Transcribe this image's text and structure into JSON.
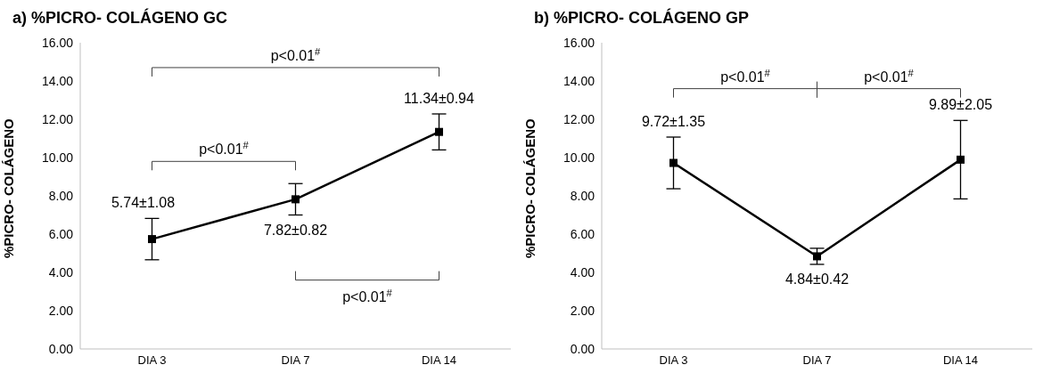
{
  "chart_data": [
    {
      "type": "line",
      "title": "a) %PICRO- COLÁGENO GC",
      "ylabel": "%PICRO- COLÁGENO",
      "categories": [
        "DIA 3",
        "DIA 7",
        "DIA 14"
      ],
      "series": [
        {
          "color": "#000000",
          "values": [
            5.74,
            7.82,
            11.34
          ],
          "errors": [
            1.08,
            0.82,
            0.94
          ],
          "value_labels": [
            "5.74±1.08",
            "7.82±0.82",
            "11.34±0.94"
          ]
        }
      ],
      "ylim": [
        0,
        16
      ],
      "yticks": [
        {
          "value": 0,
          "label": "0.00"
        },
        {
          "value": 2,
          "label": "2.00"
        },
        {
          "value": 4,
          "label": "4.00"
        },
        {
          "value": 6,
          "label": "6.00"
        },
        {
          "value": 8,
          "label": "8.00"
        },
        {
          "value": 10,
          "label": "10.00"
        },
        {
          "value": 12,
          "label": "12.00"
        },
        {
          "value": 14,
          "label": "14.00"
        },
        {
          "value": 16,
          "label": "16.00"
        }
      ],
      "marker": "square",
      "grid": false,
      "legend": false,
      "annotations": [
        "p<0.01$^{#}$",
        "p<0.01$^{#}$",
        "p<0.01$^{#}$"
      ]
    },
    {
      "type": "line",
      "title": "b) %PICRO- COLÁGENO GP",
      "ylabel": "%PICRO- COLÁGENO",
      "categories": [
        "DIA 3",
        "DIA 7",
        "DIA 14"
      ],
      "series": [
        {
          "color": "#000000",
          "values": [
            9.72,
            4.84,
            9.89
          ],
          "errors": [
            1.35,
            0.42,
            2.05
          ],
          "value_labels": [
            "9.72±1.35",
            "4.84±0.42",
            "9.89±2.05"
          ]
        }
      ],
      "ylim": [
        0,
        16
      ],
      "yticks": [
        {
          "value": 0,
          "label": "0.00"
        },
        {
          "value": 2,
          "label": "2.00"
        },
        {
          "value": 4,
          "label": "4.00"
        },
        {
          "value": 6,
          "label": "6.00"
        },
        {
          "value": 8,
          "label": "8.00"
        },
        {
          "value": 10,
          "label": "10.00"
        },
        {
          "value": 12,
          "label": "12.00"
        },
        {
          "value": 14,
          "label": "14.00"
        },
        {
          "value": 16,
          "label": "16.00"
        }
      ],
      "marker": "square",
      "grid": false,
      "legend": false,
      "annotations": [
        "p<0.01$^{#}$",
        "p<0.01$^{#}$"
      ]
    }
  ]
}
